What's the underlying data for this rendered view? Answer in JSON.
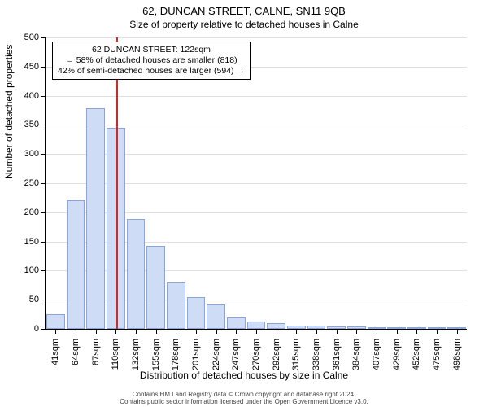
{
  "chart": {
    "type": "histogram",
    "title": "62, DUNCAN STREET, CALNE, SN11 9QB",
    "subtitle": "Size of property relative to detached houses in Calne",
    "ylabel": "Number of detached properties",
    "xlabel": "Distribution of detached houses by size in Calne",
    "ylim": [
      0,
      500
    ],
    "ytick_step": 50,
    "yticks": [
      0,
      50,
      100,
      150,
      200,
      250,
      300,
      350,
      400,
      450,
      500
    ],
    "xticks": [
      "41sqm",
      "64sqm",
      "87sqm",
      "110sqm",
      "132sqm",
      "155sqm",
      "178sqm",
      "201sqm",
      "224sqm",
      "247sqm",
      "270sqm",
      "292sqm",
      "315sqm",
      "338sqm",
      "361sqm",
      "384sqm",
      "407sqm",
      "429sqm",
      "452sqm",
      "475sqm",
      "498sqm"
    ],
    "bar_values": [
      25,
      220,
      378,
      345,
      188,
      142,
      80,
      55,
      42,
      20,
      12,
      10,
      6,
      5,
      4,
      4,
      3,
      3,
      2,
      2,
      2
    ],
    "bar_fill": "#cfdcf6",
    "bar_stroke": "#8aa3d8",
    "grid_color": "#e0e0e0",
    "background_color": "#ffffff",
    "marker": {
      "color": "#d62728",
      "bar_index_after": 3,
      "fraction_into_bar": 0.55
    },
    "annotation": {
      "line1": "62 DUNCAN STREET: 122sqm",
      "line2": "← 58% of detached houses are smaller (818)",
      "line3": "42% of semi-detached houses are larger (594) →"
    },
    "footer_line1": "Contains HM Land Registry data © Crown copyright and database right 2024.",
    "footer_line2": "Contains public sector information licensed under the Open Government Licence v3.0.",
    "title_fontsize": 13,
    "subtitle_fontsize": 12,
    "label_fontsize": 12,
    "tick_fontsize": 11,
    "annotation_fontsize": 10.5,
    "footer_fontsize": 8
  }
}
